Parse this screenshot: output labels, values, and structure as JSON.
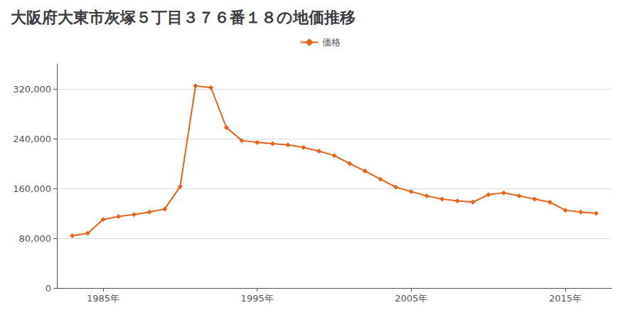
{
  "chart_data": {
    "type": "line",
    "title": "大阪府大東市灰塚５丁目３７６番１８の地価推移",
    "x": [
      1983,
      1984,
      1985,
      1986,
      1987,
      1988,
      1989,
      1990,
      1991,
      1992,
      1993,
      1994,
      1995,
      1996,
      1997,
      1998,
      1999,
      2000,
      2001,
      2002,
      2003,
      2004,
      2005,
      2006,
      2007,
      2008,
      2009,
      2010,
      2011,
      2012,
      2013,
      2014,
      2015,
      2016,
      2017
    ],
    "series": [
      {
        "name": "価格",
        "color": "#e8621a",
        "values": [
          84000,
          88000,
          110000,
          115000,
          118000,
          122000,
          127000,
          163000,
          325000,
          322000,
          258000,
          237000,
          234000,
          232000,
          230000,
          226000,
          220000,
          213000,
          200000,
          188000,
          175000,
          162000,
          155000,
          148000,
          143000,
          140000,
          138000,
          150000,
          153000,
          148000,
          143000,
          138000,
          125000,
          122000,
          120000
        ]
      }
    ],
    "xlim": [
      1982,
      2018
    ],
    "xticks": [
      {
        "value": 1985,
        "label": "1985年"
      },
      {
        "value": 1995,
        "label": "1995年"
      },
      {
        "value": 2005,
        "label": "2005年"
      },
      {
        "value": 2015,
        "label": "2015年"
      }
    ],
    "ylim": [
      0,
      360000
    ],
    "yticks": [
      0,
      {
        "value": 80000,
        "label": "80,000"
      },
      {
        "value": 160000,
        "label": "160,000"
      },
      {
        "value": 240000,
        "label": "240,000"
      },
      {
        "value": 320000,
        "label": "320,000"
      }
    ],
    "grid": true,
    "legend": "top",
    "marker": "diamond"
  }
}
